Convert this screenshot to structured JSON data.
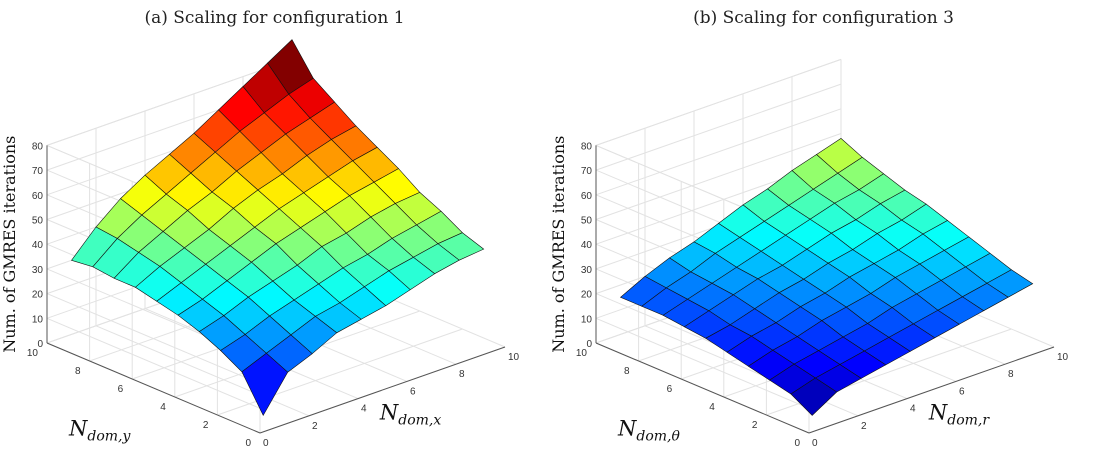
{
  "chart_data": [
    {
      "type": "surface",
      "caption": "(a) Scaling for configuration 1",
      "xlabel_main": "N",
      "xlabel_sub": "dom,x",
      "ylabel_main": "N",
      "ylabel_sub": "dom,y",
      "zlabel": "Num. of GMRES iterations",
      "x": [
        1,
        2,
        3,
        4,
        5,
        6,
        7,
        8,
        9,
        10
      ],
      "y": [
        1,
        2,
        3,
        4,
        5,
        6,
        7,
        8,
        9,
        10
      ],
      "xlim": [
        0,
        10
      ],
      "ylim": [
        0,
        10
      ],
      "zlim": [
        0,
        80
      ],
      "xticks": [
        "0",
        "2",
        "4",
        "6",
        "8",
        "10"
      ],
      "yticks": [
        "0",
        "2",
        "4",
        "6",
        "8",
        "10"
      ],
      "zticks": [
        "0",
        "10",
        "20",
        "30",
        "40",
        "50",
        "60",
        "70",
        "80"
      ],
      "colormap": "jet",
      "grid": true,
      "z": [
        [
          0,
          14,
          18,
          23,
          25,
          27,
          30,
          33,
          35,
          36
        ],
        [
          14,
          18,
          22,
          26,
          28,
          31,
          34,
          36,
          38,
          39
        ],
        [
          19,
          22,
          26,
          29,
          32,
          35,
          37,
          40,
          42,
          44
        ],
        [
          23,
          26,
          30,
          33,
          36,
          40,
          42,
          45,
          47,
          48
        ],
        [
          26,
          29,
          33,
          37,
          41,
          44,
          47,
          50,
          52,
          54
        ],
        [
          28,
          32,
          36,
          40,
          44,
          48,
          51,
          54,
          57,
          59
        ],
        [
          30,
          35,
          39,
          43,
          48,
          52,
          55,
          59,
          62,
          64
        ],
        [
          30,
          37,
          42,
          47,
          51,
          56,
          60,
          64,
          67,
          70
        ],
        [
          31,
          39,
          45,
          50,
          55,
          60,
          65,
          69,
          73,
          76
        ],
        [
          30,
          40,
          48,
          54,
          59,
          64,
          70,
          76,
          82,
          88
        ]
      ]
    },
    {
      "type": "surface",
      "caption": "(b) Scaling for configuration 3",
      "xlabel_main": "N",
      "xlabel_sub": "dom,r",
      "ylabel_main": "N",
      "ylabel_sub": "dom,θ",
      "zlabel": "Num. of GMRES iterations",
      "x": [
        1,
        2,
        3,
        4,
        5,
        6,
        7,
        8,
        9,
        10
      ],
      "y": [
        1,
        2,
        3,
        4,
        5,
        6,
        7,
        8,
        9,
        10
      ],
      "xlim": [
        0,
        10
      ],
      "ylim": [
        0,
        10
      ],
      "zlim": [
        0,
        80
      ],
      "xticks": [
        "0",
        "2",
        "4",
        "6",
        "8",
        "10"
      ],
      "yticks": [
        "0",
        "2",
        "4",
        "6",
        "8",
        "10"
      ],
      "zticks": [
        "0",
        "10",
        "20",
        "30",
        "40",
        "50",
        "60",
        "70",
        "80"
      ],
      "colormap": "jet",
      "grid": true,
      "z": [
        [
          0,
          6,
          8,
          10,
          12,
          14,
          16,
          18,
          20,
          22
        ],
        [
          5,
          8,
          10,
          12,
          14,
          16,
          18,
          20,
          22,
          24
        ],
        [
          7,
          10,
          12,
          14,
          16,
          19,
          21,
          23,
          25,
          27
        ],
        [
          9,
          12,
          14,
          17,
          19,
          21,
          24,
          26,
          28,
          30
        ],
        [
          11,
          14,
          16,
          19,
          21,
          24,
          26,
          28,
          31,
          33
        ],
        [
          13,
          15,
          18,
          21,
          23,
          26,
          28,
          31,
          33,
          36
        ],
        [
          14,
          17,
          20,
          23,
          25,
          28,
          31,
          33,
          36,
          38
        ],
        [
          15,
          18,
          21,
          24,
          27,
          30,
          33,
          36,
          38,
          41
        ],
        [
          15,
          19,
          22,
          26,
          29,
          32,
          35,
          38,
          41,
          44
        ],
        [
          15,
          20,
          24,
          27,
          31,
          35,
          38,
          42,
          45,
          48
        ]
      ]
    }
  ]
}
